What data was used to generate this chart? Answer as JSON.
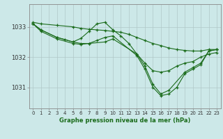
{
  "bg_color": "#cce8e8",
  "grid_color": "#b0c8c8",
  "line_color": "#1a6b1a",
  "title": "Graphe pression niveau de la mer (hPa)",
  "xlabel_hours": [
    0,
    1,
    2,
    3,
    4,
    5,
    6,
    7,
    8,
    9,
    10,
    11,
    12,
    13,
    14,
    15,
    16,
    17,
    18,
    19,
    20,
    21,
    22,
    23
  ],
  "yticks": [
    1031,
    1032,
    1033
  ],
  "ylim": [
    1030.3,
    1033.75
  ],
  "xlim": [
    -0.5,
    23.5
  ],
  "lines": [
    {
      "x": [
        0,
        1,
        3,
        5,
        6,
        7,
        8,
        9,
        10,
        11,
        12,
        13,
        14,
        15,
        16,
        17,
        18,
        19,
        20,
        21,
        22,
        23
      ],
      "y": [
        1033.15,
        1033.1,
        1033.05,
        1033.0,
        1032.95,
        1032.92,
        1032.9,
        1032.88,
        1032.85,
        1032.82,
        1032.75,
        1032.65,
        1032.55,
        1032.45,
        1032.38,
        1032.3,
        1032.25,
        1032.22,
        1032.2,
        1032.2,
        1032.25,
        1032.25
      ]
    },
    {
      "x": [
        0,
        1,
        3,
        5,
        6,
        7,
        8,
        9,
        10,
        11,
        12,
        13,
        14,
        15,
        16,
        17,
        18,
        19,
        20,
        21,
        22,
        23
      ],
      "y": [
        1033.1,
        1032.9,
        1032.65,
        1032.5,
        1032.62,
        1032.85,
        1033.1,
        1033.15,
        1032.9,
        1032.7,
        1032.45,
        1032.1,
        1031.8,
        1031.55,
        1031.5,
        1031.55,
        1031.7,
        1031.8,
        1031.85,
        1032.0,
        1032.1,
        1032.15
      ]
    },
    {
      "x": [
        0,
        1,
        3,
        5,
        6,
        7,
        8,
        9,
        10,
        13,
        14,
        15,
        16,
        17,
        18,
        19,
        20,
        21,
        22,
        23
      ],
      "y": [
        1033.1,
        1032.85,
        1032.6,
        1032.45,
        1032.42,
        1032.45,
        1032.55,
        1032.65,
        1032.7,
        1032.05,
        1031.6,
        1031.0,
        1030.72,
        1030.78,
        1031.0,
        1031.45,
        1031.6,
        1031.75,
        1032.2,
        1032.25
      ]
    },
    {
      "x": [
        0,
        1,
        3,
        4,
        5,
        6,
        7,
        9,
        10,
        13,
        14,
        15,
        16,
        17,
        19,
        20,
        21,
        22,
        23
      ],
      "y": [
        1033.1,
        1032.9,
        1032.65,
        1032.58,
        1032.5,
        1032.45,
        1032.45,
        1032.5,
        1032.6,
        1032.1,
        1031.7,
        1031.1,
        1030.78,
        1030.9,
        1031.5,
        1031.65,
        1031.8,
        1032.2,
        1032.25
      ]
    }
  ]
}
